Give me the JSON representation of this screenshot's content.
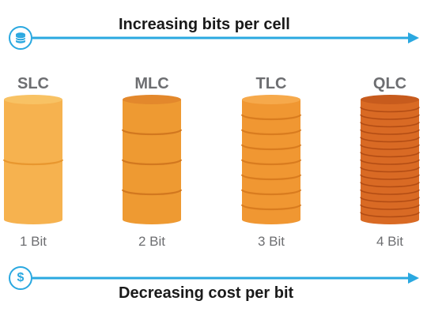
{
  "header": {
    "title": "Increasing bits per cell",
    "icon": "database-icon"
  },
  "footer": {
    "title": "Decreasing cost per bit",
    "icon": "dollar-icon",
    "icon_glyph": "$"
  },
  "colors": {
    "accent": "#2aa8e0"
  },
  "cells": [
    {
      "type": "SLC",
      "bits_label": "1 Bit",
      "bits": 1,
      "layers": 2,
      "colors": {
        "body": "#f6b24f",
        "top": "#f8c264",
        "line": "#e8972f"
      }
    },
    {
      "type": "MLC",
      "bits_label": "2 Bit",
      "bits": 2,
      "layers": 4,
      "colors": {
        "body": "#ee9a32",
        "top": "#e3882c",
        "line": "#d2781f"
      }
    },
    {
      "type": "TLC",
      "bits_label": "3 Bit",
      "bits": 3,
      "layers": 8,
      "colors": {
        "body": "#f09732",
        "top": "#f6a94b",
        "line": "#d97c1f"
      }
    },
    {
      "type": "QLC",
      "bits_label": "4 Bit",
      "bits": 4,
      "layers": 16,
      "colors": {
        "body": "#d96a24",
        "top": "#c75b1d",
        "line": "#b24c14"
      }
    }
  ]
}
